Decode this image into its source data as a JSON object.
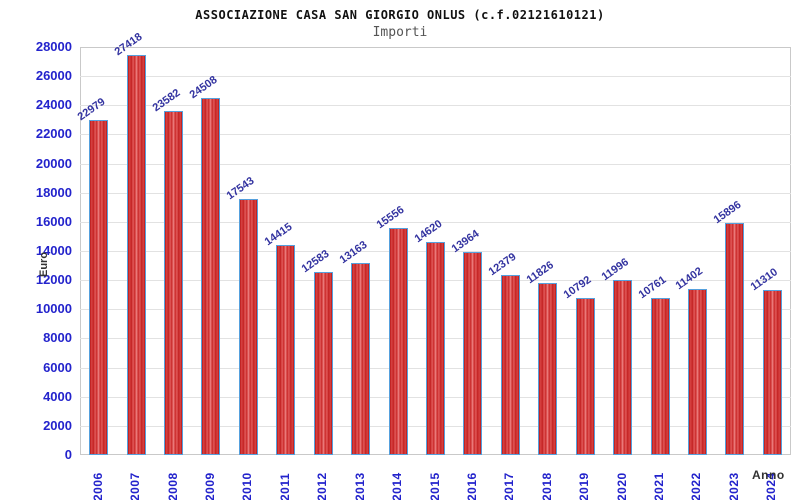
{
  "header": {
    "title": "ASSOCIAZIONE CASA SAN GIORGIO ONLUS (c.f.02121610121)",
    "subtitle": "Importi"
  },
  "chart_data": {
    "type": "bar",
    "title": "Importi",
    "categories": [
      "2006",
      "2007",
      "2008",
      "2009",
      "2010",
      "2011",
      "2012",
      "2013",
      "2014",
      "2015",
      "2016",
      "2017",
      "2018",
      "2019",
      "2020",
      "2021",
      "2022",
      "2023",
      "2024"
    ],
    "values": [
      22979,
      27418,
      23582,
      24508,
      17543,
      14415,
      12583,
      13163,
      15556,
      14620,
      13964,
      12379,
      11826,
      10792,
      11996,
      10761,
      11402,
      15896,
      11310
    ],
    "xlabel": "Anno",
    "ylabel": "Euro",
    "ylim": [
      0,
      28000
    ],
    "ytick_step": 2000,
    "grid": "horizontal-bands-alternating",
    "legend": "none",
    "colors": {
      "bar_fill_dark": "#b91717",
      "bar_fill_light": "#ef8585",
      "bar_border": "#55a0dd",
      "tick_label": "#2323cc",
      "value_label": "#3333a0",
      "axis_title": "#333333",
      "band_gray": "#f2f2f2",
      "band_white": "#ffffff",
      "gridline": "#e2e2e2",
      "plot_border": "#c9c9c9"
    }
  }
}
